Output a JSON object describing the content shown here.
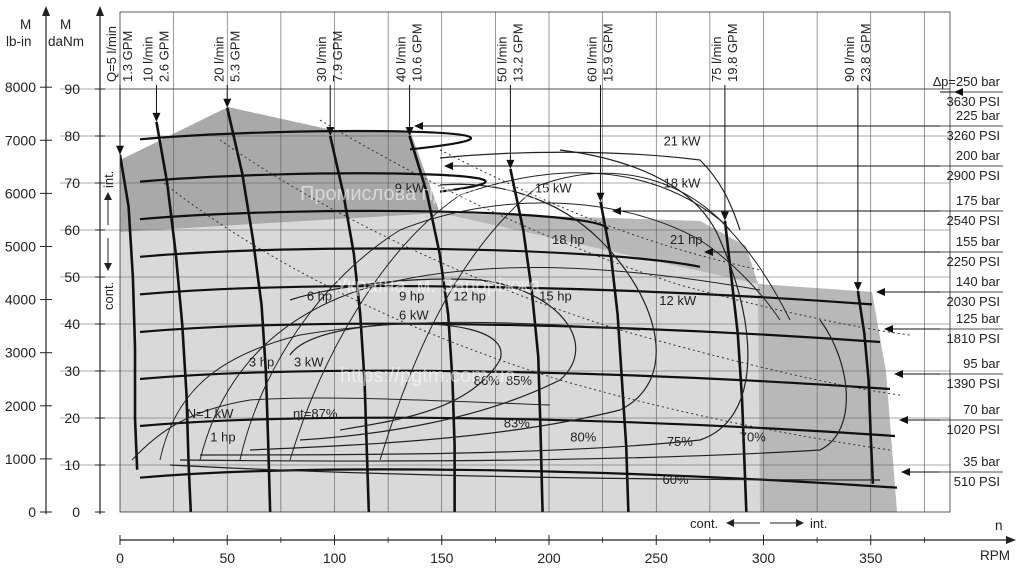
{
  "chart_data": {
    "type": "line",
    "x_axis": {
      "label": "n",
      "unit": "RPM",
      "range": [
        0,
        375
      ],
      "ticks": [
        0,
        50,
        100,
        150,
        200,
        250,
        300,
        350
      ],
      "tick_labels": [
        "0",
        "50",
        "100",
        "150",
        "200",
        "250",
        "300",
        "350"
      ]
    },
    "y_axis_torque_dанm": {
      "label": "M",
      "unit": "daNm",
      "range": [
        0,
        95
      ],
      "ticks": [
        0,
        10,
        20,
        30,
        40,
        50,
        60,
        70,
        80,
        90
      ],
      "tick_labels": [
        "0",
        "10",
        "20",
        "30",
        "40",
        "50",
        "60",
        "70",
        "80",
        "90"
      ]
    },
    "y_axis_torque_lbin": {
      "label": "M",
      "unit": "lb-in",
      "ticks": [
        0,
        1000,
        2000,
        3000,
        4000,
        5000,
        6000,
        7000,
        8000
      ],
      "tick_labels": [
        "0",
        "1000",
        "2000",
        "3000",
        "4000",
        "5000",
        "6000",
        "7000",
        "8000"
      ]
    },
    "flow_lines": [
      {
        "lpm": "Q=5 l/min",
        "gpm": "1.3 GPM",
        "points": [
          [
            0,
            76
          ],
          [
            4,
            65
          ],
          [
            6,
            50
          ],
          [
            7,
            35
          ],
          [
            7,
            20
          ],
          [
            8,
            9
          ]
        ]
      },
      {
        "lpm": "10 l/min",
        "gpm": "2.6 GPM",
        "points": [
          [
            17,
            83
          ],
          [
            22,
            70
          ],
          [
            26,
            55
          ],
          [
            29,
            40
          ],
          [
            31,
            25
          ],
          [
            32,
            10
          ],
          [
            33,
            0
          ]
        ]
      },
      {
        "lpm": "20 l/min",
        "gpm": "5.3 GPM",
        "points": [
          [
            50,
            86
          ],
          [
            57,
            72
          ],
          [
            62,
            58
          ],
          [
            66,
            44
          ],
          [
            68,
            30
          ],
          [
            69,
            16
          ],
          [
            70,
            0
          ]
        ]
      },
      {
        "lpm": "30 l/min",
        "gpm": "7.9 GPM",
        "points": [
          [
            98,
            80
          ],
          [
            104,
            68
          ],
          [
            109,
            55
          ],
          [
            112,
            42
          ],
          [
            114,
            28
          ],
          [
            115,
            14
          ],
          [
            116,
            0
          ]
        ]
      },
      {
        "lpm": "40 l/min",
        "gpm": "10.6 GPM",
        "points": [
          [
            135,
            80
          ],
          [
            143,
            68
          ],
          [
            149,
            55
          ],
          [
            153,
            42
          ],
          [
            155,
            28
          ],
          [
            156,
            14
          ],
          [
            156,
            0
          ]
        ]
      },
      {
        "lpm": "50 l/min",
        "gpm": "13.2 GPM",
        "points": [
          [
            182,
            73
          ],
          [
            188,
            60
          ],
          [
            192,
            47
          ],
          [
            195,
            33
          ],
          [
            196,
            18
          ],
          [
            197,
            0
          ]
        ]
      },
      {
        "lpm": "60 l/min",
        "gpm": "15.9 GPM",
        "points": [
          [
            224,
            66
          ],
          [
            229,
            54
          ],
          [
            232,
            42
          ],
          [
            234,
            28
          ],
          [
            236,
            14
          ],
          [
            237,
            0
          ]
        ]
      },
      {
        "lpm": "75 l/min",
        "gpm": "19.8 GPM",
        "points": [
          [
            282,
            62
          ],
          [
            285,
            50
          ],
          [
            288,
            38
          ],
          [
            290,
            24
          ],
          [
            291,
            12
          ],
          [
            292,
            0
          ]
        ]
      },
      {
        "lpm": "90 l/min",
        "gpm": "23.8 GPM",
        "points": [
          [
            344,
            47
          ],
          [
            347,
            38
          ],
          [
            349,
            28
          ],
          [
            350,
            16
          ],
          [
            351,
            6
          ]
        ]
      }
    ],
    "pressure_lines": [
      {
        "bar": "∆p=250 bar",
        "psi": "3630 PSI",
        "torque": 90
      },
      {
        "bar": "225 bar",
        "psi": "3260 PSI",
        "torque": 81
      },
      {
        "bar": "200 bar",
        "psi": "2900 PSI",
        "torque": 72
      },
      {
        "bar": "175 bar",
        "psi": "2540 PSI",
        "torque": 64
      },
      {
        "bar": "155 bar",
        "psi": "2250 PSI",
        "torque": 56
      },
      {
        "bar": "140 bar",
        "psi": "2030 PSI",
        "torque": 48
      },
      {
        "bar": "125 bar",
        "psi": "1810 PSI",
        "torque": 40
      },
      {
        "bar": "95 bar",
        "psi": "1390 PSI",
        "torque": 30
      },
      {
        "bar": "70 bar",
        "psi": "1020 PSI",
        "torque": 20
      },
      {
        "bar": "35 bar",
        "psi": "510 PSI",
        "torque": 9
      }
    ],
    "power_labels": [
      {
        "text": "N=1 kW",
        "x": 42,
        "y": 20
      },
      {
        "text": "1 hp",
        "x": 48,
        "y": 15
      },
      {
        "text": "3 hp",
        "x": 66,
        "y": 31
      },
      {
        "text": "3 kW",
        "x": 88,
        "y": 31
      },
      {
        "text": "6 hp",
        "x": 93,
        "y": 45
      },
      {
        "text": "6 kW",
        "x": 137,
        "y": 41
      },
      {
        "text": "9 hp",
        "x": 136,
        "y": 45
      },
      {
        "text": "9 kW",
        "x": 135,
        "y": 68
      },
      {
        "text": "12 hp",
        "x": 163,
        "y": 45
      },
      {
        "text": "12 kW",
        "x": 260,
        "y": 44
      },
      {
        "text": "15 hp",
        "x": 203,
        "y": 45
      },
      {
        "text": "15 kW",
        "x": 202,
        "y": 68
      },
      {
        "text": "18 hp",
        "x": 209,
        "y": 57
      },
      {
        "text": "18 kW",
        "x": 262,
        "y": 69
      },
      {
        "text": "21 hp",
        "x": 264,
        "y": 57
      },
      {
        "text": "21 kW",
        "x": 262,
        "y": 78
      }
    ],
    "efficiency_labels": [
      {
        "text": "ηt=87%",
        "x": 91,
        "y": 20
      },
      {
        "text": "86%",
        "x": 171,
        "y": 27
      },
      {
        "text": "85%",
        "x": 186,
        "y": 27
      },
      {
        "text": "83%",
        "x": 185,
        "y": 18
      },
      {
        "text": "80%",
        "x": 216,
        "y": 15
      },
      {
        "text": "75%",
        "x": 261,
        "y": 14
      },
      {
        "text": "70%",
        "x": 295,
        "y": 15
      },
      {
        "text": "60%",
        "x": 259,
        "y": 6
      }
    ],
    "regions": [
      {
        "name": "cont.",
        "torque_range": [
          0,
          60
        ]
      },
      {
        "name": "int.",
        "torque_range": [
          60,
          90
        ]
      }
    ],
    "speed_regions": [
      {
        "name": "cont.",
        "rpm_range": [
          0,
          300
        ]
      },
      {
        "name": "int.",
        "rpm_range": [
          300,
          360
        ]
      }
    ],
    "watermarks": [
      "Промислова гідравліка ТМ",
      "Україна, м. Запоріжжя",
      "https://pgtm.com.ua"
    ]
  }
}
